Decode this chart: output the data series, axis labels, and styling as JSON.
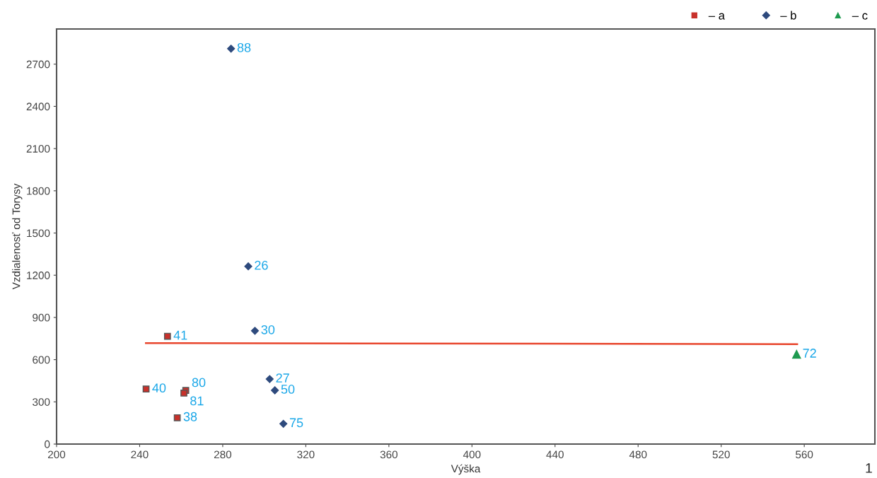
{
  "chart_data": {
    "type": "scatter",
    "xlabel": "Výška",
    "ylabel": "Vzdialenosť od Torysy",
    "xlim": [
      200,
      594
    ],
    "xticks": [
      200,
      240,
      280,
      320,
      360,
      400,
      440,
      480,
      520,
      560
    ],
    "ylim": [
      0,
      2950
    ],
    "yticks": [
      0,
      300,
      600,
      900,
      1200,
      1500,
      1800,
      2100,
      2400,
      2700
    ],
    "grid": false,
    "legend": "top right",
    "series": [
      {
        "name": "– a",
        "color": "#c8312b",
        "marker": "square",
        "x": [
          253.4,
          243.1,
          262.2,
          261.3,
          258.1
        ],
        "values": [
          766,
          391,
          381,
          362,
          187
        ]
      },
      {
        "name": "– b",
        "color": "#2e4a7d",
        "marker": "diamond",
        "x": [
          284.0,
          292.3,
          295.5,
          302.6,
          305.1,
          309.2
        ],
        "values": [
          2810,
          1263,
          805,
          462,
          382,
          144
        ]
      },
      {
        "name": "– c",
        "color": "#1e9a4f",
        "marker": "triangle",
        "x": [
          556.3
        ],
        "values": [
          638
        ]
      },
      {
        "type": "line",
        "color": "#e8452c",
        "marker": "none",
        "x": [
          243.0,
          556.6
        ],
        "values": [
          718,
          710
        ]
      }
    ],
    "annotations": [
      {
        "text": "41",
        "x": 253.4,
        "y": 766
      },
      {
        "text": "40",
        "x": 243.1,
        "y": 391
      },
      {
        "text": "80",
        "x": 262.2,
        "y": 381
      },
      {
        "text": "81",
        "x": 261.3,
        "y": 362
      },
      {
        "text": "38",
        "x": 258.1,
        "y": 187
      },
      {
        "text": "88",
        "x": 284.0,
        "y": 2810
      },
      {
        "text": "26",
        "x": 292.3,
        "y": 1263
      },
      {
        "text": "30",
        "x": 295.5,
        "y": 805
      },
      {
        "text": "27",
        "x": 302.6,
        "y": 462
      },
      {
        "text": "50",
        "x": 305.1,
        "y": 382
      },
      {
        "text": "75",
        "x": 309.2,
        "y": 144
      },
      {
        "text": "72",
        "x": 556.3,
        "y": 638
      },
      "1"
    ]
  }
}
